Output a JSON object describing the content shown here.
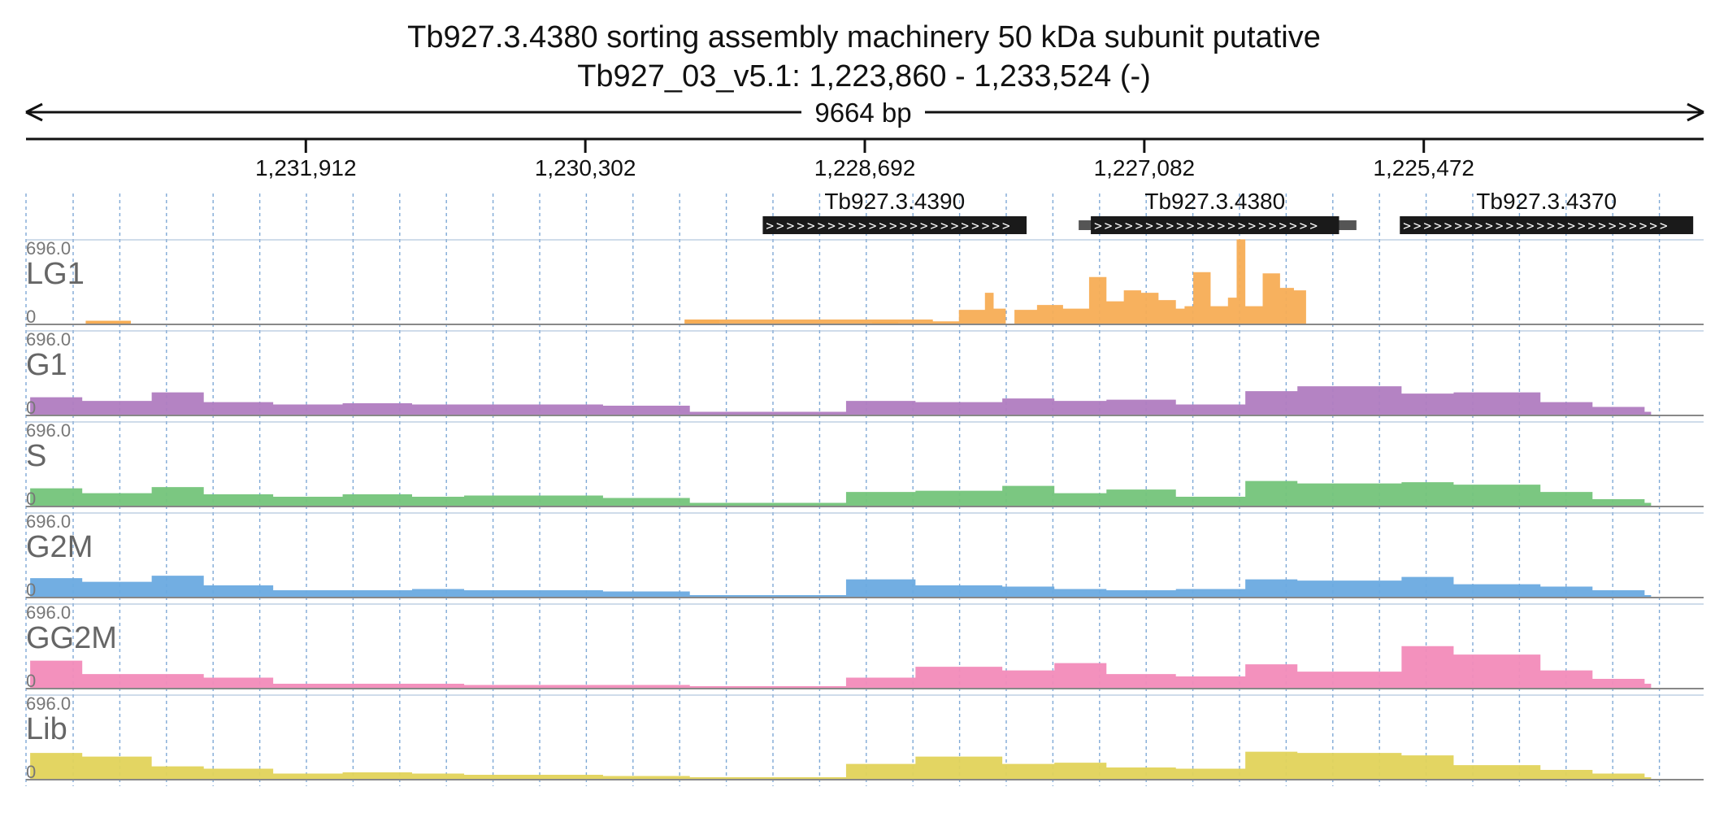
{
  "header": {
    "title": "Tb927.3.4380  sorting assembly machinery 50 kDa subunit  putative",
    "locus": "Tb927_03_v5.1: 1,223,860 - 1,233,524 (-)",
    "span_label": "9664 bp"
  },
  "colors": {
    "LG1": "#f7ad55",
    "G1": "#b07cc0",
    "S": "#74c47a",
    "G2M": "#6aaae0",
    "GG2M": "#f28bb9",
    "Lib": "#e2d35a",
    "gene": "#1a1a1a",
    "grid": "#7fa9d6"
  },
  "chart_data": {
    "type": "area",
    "chromosome": "Tb927_03_v5.1",
    "region": {
      "start": 1223860,
      "end": 1233524,
      "strand": "-"
    },
    "x_direction": "reversed",
    "x_ticks": [
      {
        "value": 1231912,
        "label": "1,231,912"
      },
      {
        "value": 1230302,
        "label": "1,230,302"
      },
      {
        "value": 1228692,
        "label": "1,228,692"
      },
      {
        "value": 1227082,
        "label": "1,227,082"
      },
      {
        "value": 1225472,
        "label": "1,225,472"
      }
    ],
    "genes": [
      {
        "name": "Tb927.3.4390",
        "start": 1227760,
        "end": 1229280
      },
      {
        "name": "Tb927.3.4380",
        "start": 1225960,
        "end": 1227390,
        "utr_start": 1225860,
        "utr_end": 1227460
      },
      {
        "name": "Tb927.3.4370",
        "start": 1223920,
        "end": 1225610
      }
    ],
    "ylim": [
      0,
      696.0
    ],
    "y_max_label": "696.0",
    "y_min_label": "0",
    "series": [
      {
        "name": "LG1",
        "x": [
          1233180,
          1233020,
          1232920,
          1229730,
          1229530,
          1228300,
          1228150,
          1228000,
          1227950,
          1227880,
          1227830,
          1227700,
          1227550,
          1227400,
          1227300,
          1227200,
          1227100,
          1227000,
          1226900,
          1226850,
          1226800,
          1226700,
          1226600,
          1226550,
          1226500,
          1226400,
          1226300,
          1226220,
          1226150
        ],
        "y": [
          30,
          30,
          0,
          40,
          40,
          25,
          120,
          260,
          130,
          0,
          120,
          160,
          130,
          390,
          190,
          280,
          260,
          200,
          130,
          150,
          430,
          150,
          220,
          700,
          150,
          420,
          300,
          280,
          0
        ],
        "fill": [
          [
            1233180,
            1232920,
            28
          ],
          [
            1229730,
            1229530,
            38
          ],
          [
            1228650,
            1228500,
            20
          ]
        ]
      },
      {
        "name": "G1",
        "x": [
          1233500,
          1233200,
          1232800,
          1232500,
          1232100,
          1231700,
          1231300,
          1231000,
          1230200,
          1229700,
          1228800,
          1228400,
          1227900,
          1227600,
          1227300,
          1226900,
          1226500,
          1226200,
          1225600,
          1225300,
          1224800,
          1224500,
          1224200
        ],
        "y": [
          150,
          120,
          190,
          110,
          90,
          100,
          90,
          90,
          80,
          30,
          120,
          110,
          140,
          120,
          130,
          90,
          200,
          240,
          180,
          190,
          110,
          70,
          30
        ]
      },
      {
        "name": "S",
        "x": [
          1233500,
          1233200,
          1232800,
          1232500,
          1232100,
          1231700,
          1231300,
          1231000,
          1230200,
          1229700,
          1228800,
          1228400,
          1227900,
          1227600,
          1227300,
          1226900,
          1226500,
          1226200,
          1225600,
          1225300,
          1224800,
          1224500,
          1224200
        ],
        "y": [
          150,
          110,
          160,
          100,
          80,
          100,
          80,
          90,
          70,
          30,
          120,
          130,
          170,
          110,
          140,
          80,
          210,
          190,
          200,
          180,
          120,
          60,
          30
        ]
      },
      {
        "name": "G2M",
        "x": [
          1233500,
          1233200,
          1232800,
          1232500,
          1232100,
          1231700,
          1231300,
          1231000,
          1230200,
          1229700,
          1228800,
          1228400,
          1227900,
          1227600,
          1227300,
          1226900,
          1226500,
          1226200,
          1225600,
          1225300,
          1224800,
          1224500,
          1224200
        ],
        "y": [
          160,
          130,
          180,
          100,
          60,
          60,
          70,
          60,
          50,
          20,
          150,
          100,
          90,
          70,
          60,
          70,
          150,
          140,
          170,
          110,
          90,
          60,
          20
        ]
      },
      {
        "name": "GG2M",
        "x": [
          1233500,
          1233200,
          1232800,
          1232500,
          1232100,
          1231700,
          1231300,
          1231000,
          1230200,
          1229700,
          1228800,
          1228400,
          1227900,
          1227600,
          1227300,
          1226900,
          1226500,
          1226200,
          1225600,
          1225300,
          1224800,
          1224500,
          1224200
        ],
        "y": [
          230,
          120,
          120,
          90,
          40,
          40,
          40,
          30,
          30,
          20,
          90,
          180,
          150,
          210,
          120,
          100,
          200,
          140,
          350,
          280,
          150,
          80,
          40
        ]
      },
      {
        "name": "Lib",
        "x": [
          1233500,
          1233200,
          1232800,
          1232500,
          1232100,
          1231700,
          1231300,
          1231000,
          1230200,
          1229700,
          1228800,
          1228400,
          1227900,
          1227600,
          1227300,
          1226900,
          1226500,
          1226200,
          1225600,
          1225300,
          1224800,
          1224500,
          1224200
        ],
        "y": [
          220,
          190,
          110,
          90,
          50,
          60,
          50,
          40,
          30,
          20,
          130,
          190,
          130,
          140,
          100,
          90,
          230,
          220,
          200,
          120,
          80,
          50,
          20
        ]
      }
    ]
  }
}
